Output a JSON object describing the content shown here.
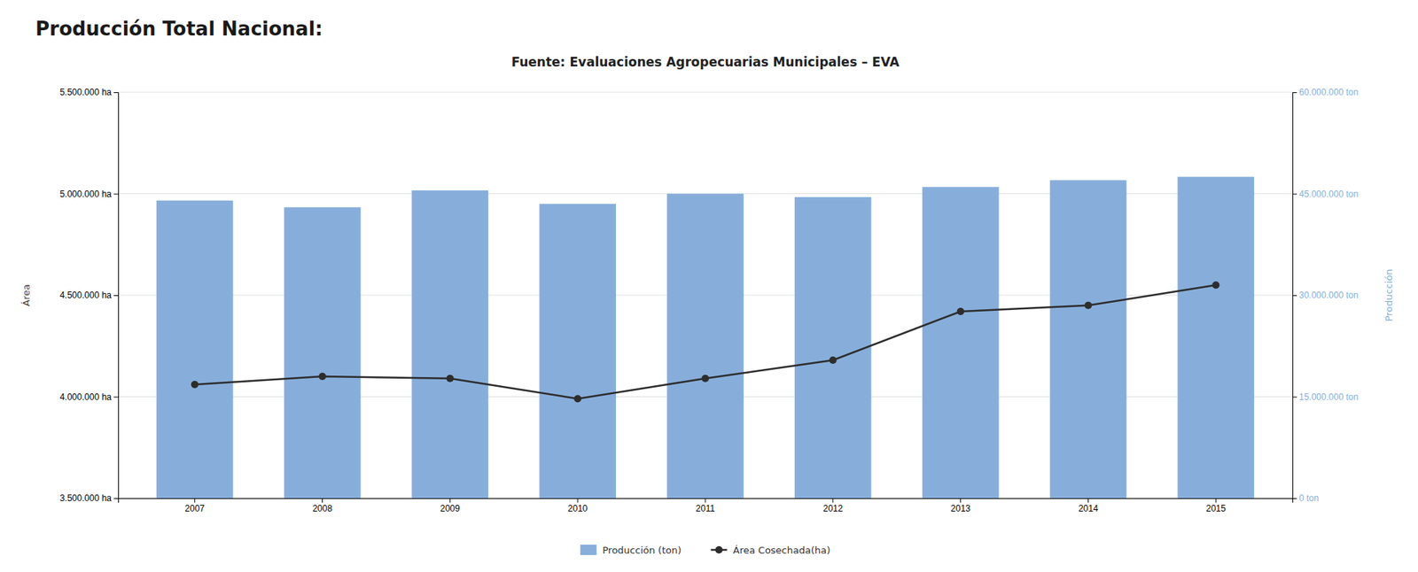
{
  "chart_data": {
    "type": "bar",
    "title": "Producción Total Nacional:",
    "subtitle": "Fuente: Evaluaciones Agropecuarias Municipales – EVA",
    "ylabel": "Área",
    "y2label": "Producción",
    "categories": [
      "2007",
      "2008",
      "2009",
      "2010",
      "2011",
      "2012",
      "2013",
      "2014",
      "2015"
    ],
    "series": [
      {
        "name": "Producción (ton)",
        "type": "bar",
        "axis": "y2",
        "color": "#87AEDB",
        "values": [
          44000000,
          43000000,
          45500000,
          43500000,
          45000000,
          44500000,
          46000000,
          47000000,
          47500000
        ]
      },
      {
        "name": "Área Cosechada(ha)",
        "type": "line",
        "axis": "y",
        "color": "#2d2d2d",
        "marker": "circle",
        "values": [
          4060000,
          4100000,
          4090000,
          3990000,
          4090000,
          4180000,
          4420000,
          4450000,
          4550000
        ]
      }
    ],
    "ylim": [
      3500000,
      5500000
    ],
    "yticks": [
      {
        "value": 3500000,
        "label": "3.500.000 ha"
      },
      {
        "value": 4000000,
        "label": "4.000.000 ha"
      },
      {
        "value": 4500000,
        "label": "4.500.000 ha"
      },
      {
        "value": 5000000,
        "label": "5.000.000 ha"
      },
      {
        "value": 5500000,
        "label": "5.500.000 ha"
      }
    ],
    "y2lim": [
      0,
      60000000
    ],
    "y2ticks": [
      {
        "value": 0,
        "label": "0 ton"
      },
      {
        "value": 15000000,
        "label": "15.000.000 ton"
      },
      {
        "value": 30000000,
        "label": "30.000.000 ton"
      },
      {
        "value": 45000000,
        "label": "45.000.000 ton"
      },
      {
        "value": 60000000,
        "label": "60.000.000 ton"
      }
    ],
    "grid": true,
    "legend": "bottom"
  }
}
